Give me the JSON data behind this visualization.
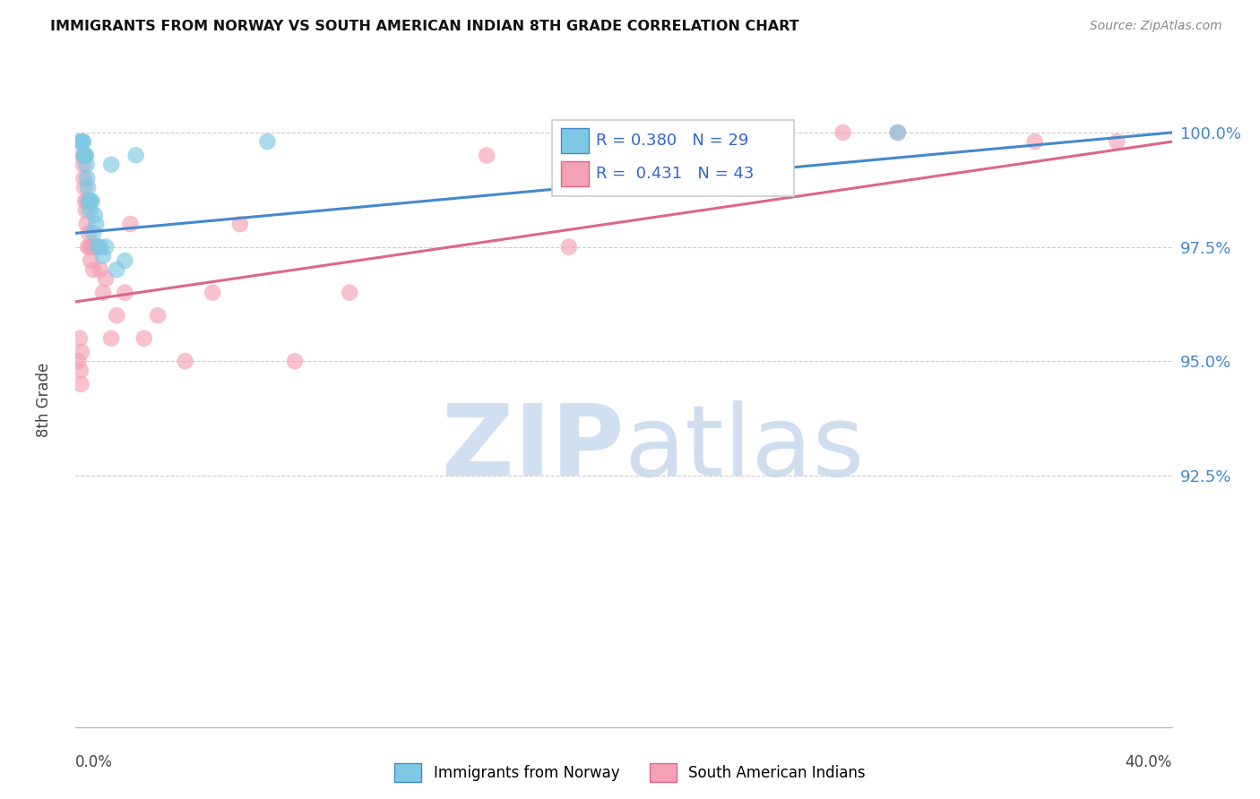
{
  "title": "IMMIGRANTS FROM NORWAY VS SOUTH AMERICAN INDIAN 8TH GRADE CORRELATION CHART",
  "source": "Source: ZipAtlas.com",
  "ylabel": "8th Grade",
  "y_tick_labels": [
    "92.5%",
    "95.0%",
    "97.5%",
    "100.0%"
  ],
  "y_tick_values": [
    92.5,
    95.0,
    97.5,
    100.0
  ],
  "xlim": [
    0.0,
    40.0
  ],
  "ylim": [
    87.0,
    101.5
  ],
  "legend_norway_label": "Immigrants from Norway",
  "legend_sai_label": "South American Indians",
  "norway_R": 0.38,
  "norway_N": 29,
  "sai_R": 0.431,
  "sai_N": 43,
  "norway_color": "#7ec8e3",
  "sai_color": "#f4a0b5",
  "norway_line_color": "#4488cc",
  "sai_line_color": "#dd6688",
  "norway_x": [
    0.15,
    0.22,
    0.25,
    0.28,
    0.3,
    0.35,
    0.38,
    0.4,
    0.42,
    0.45,
    0.48,
    0.5,
    0.52,
    0.55,
    0.6,
    0.65,
    0.7,
    0.75,
    0.8,
    0.9,
    1.0,
    1.1,
    1.3,
    1.5,
    1.8,
    2.2,
    7.0,
    20.0,
    30.0
  ],
  "norway_y": [
    99.8,
    99.8,
    99.8,
    99.8,
    99.5,
    99.5,
    99.5,
    99.3,
    99.0,
    98.8,
    98.5,
    98.5,
    98.3,
    98.5,
    98.5,
    97.8,
    98.2,
    98.0,
    97.5,
    97.5,
    97.3,
    97.5,
    99.3,
    97.0,
    97.2,
    99.5,
    99.8,
    100.0,
    100.0
  ],
  "sai_x": [
    0.1,
    0.15,
    0.18,
    0.2,
    0.22,
    0.25,
    0.28,
    0.3,
    0.32,
    0.35,
    0.38,
    0.4,
    0.42,
    0.45,
    0.48,
    0.5,
    0.55,
    0.6,
    0.65,
    0.7,
    0.8,
    0.9,
    1.0,
    1.1,
    1.3,
    1.5,
    1.8,
    2.0,
    2.5,
    3.0,
    4.0,
    5.0,
    6.0,
    8.0,
    10.0,
    15.0,
    18.0,
    20.0,
    25.0,
    28.0,
    30.0,
    35.0,
    38.0
  ],
  "sai_y": [
    95.0,
    95.5,
    94.8,
    94.5,
    95.2,
    99.5,
    99.3,
    99.0,
    98.8,
    98.5,
    98.3,
    98.0,
    98.5,
    97.5,
    97.8,
    97.5,
    97.2,
    97.5,
    97.0,
    97.5,
    97.5,
    97.0,
    96.5,
    96.8,
    95.5,
    96.0,
    96.5,
    98.0,
    95.5,
    96.0,
    95.0,
    96.5,
    98.0,
    95.0,
    96.5,
    99.5,
    97.5,
    100.0,
    100.0,
    100.0,
    100.0,
    99.8,
    99.8
  ],
  "norway_line_x0": 0.0,
  "norway_line_y0": 97.8,
  "norway_line_x1": 40.0,
  "norway_line_y1": 100.0,
  "sai_line_x0": 0.0,
  "sai_line_y0": 96.3,
  "sai_line_x1": 40.0,
  "sai_line_y1": 99.8
}
